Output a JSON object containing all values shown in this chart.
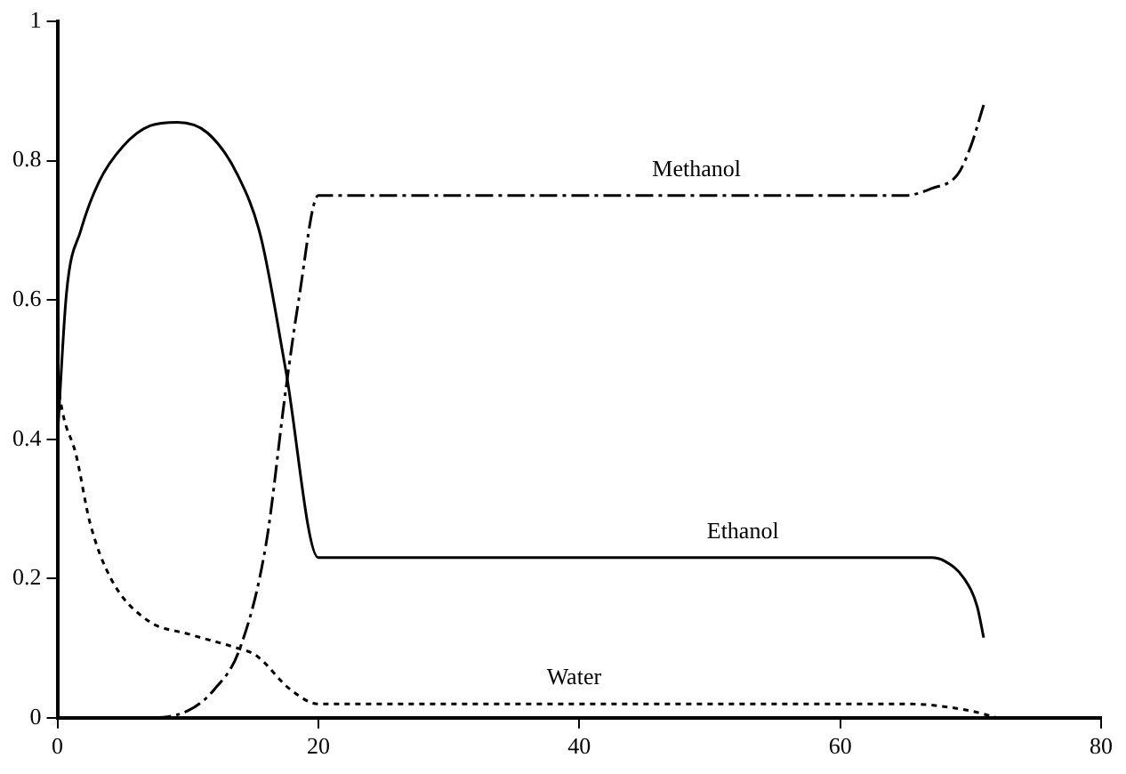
{
  "chart_data": {
    "type": "line",
    "xlim": [
      0,
      80
    ],
    "xticks": [
      0,
      20,
      40,
      60,
      80
    ],
    "ylim": [
      0,
      1
    ],
    "yticks": [
      0,
      0.2,
      0.4,
      0.6,
      0.8,
      1
    ],
    "grid": false,
    "legend": false,
    "marker": "none",
    "series": [
      {
        "name": "Ethanol",
        "color": "#000000",
        "line_style": "solid",
        "x": [
          0,
          0.7,
          1.8,
          3.2,
          5,
          7.1,
          9.2,
          11.5,
          13.8,
          15.6,
          17.5,
          20,
          30,
          40,
          50,
          60,
          67,
          68,
          69.5,
          70.5,
          71
        ],
        "values": [
          0.4,
          0.61,
          0.7,
          0.77,
          0.82,
          0.85,
          0.855,
          0.84,
          0.78,
          0.69,
          0.5,
          0.23,
          0.23,
          0.23,
          0.23,
          0.23,
          0.23,
          0.225,
          0.2,
          0.16,
          0.115
        ]
      },
      {
        "name": "Methanol",
        "color": "#000000",
        "line_style": "dashed",
        "x": [
          0,
          3,
          7,
          10,
          12,
          14,
          16,
          17.5,
          18.5,
          20,
          30,
          40,
          50,
          60,
          65,
          67,
          69,
          70,
          71
        ],
        "values": [
          0,
          0,
          0,
          0.01,
          0.04,
          0.1,
          0.25,
          0.47,
          0.6,
          0.75,
          0.75,
          0.75,
          0.75,
          0.75,
          0.75,
          0.76,
          0.78,
          0.82,
          0.88
        ]
      },
      {
        "name": "Water",
        "color": "#000000",
        "line_style": "dotted",
        "x": [
          0,
          0.5,
          1.4,
          2.5,
          4.1,
          6.9,
          10.1,
          13.8,
          15.2,
          17.9,
          20,
          30,
          40,
          50,
          60,
          65,
          70,
          72
        ],
        "values": [
          0.48,
          0.43,
          0.38,
          0.28,
          0.2,
          0.14,
          0.12,
          0.1,
          0.09,
          0.04,
          0.02,
          0.02,
          0.02,
          0.02,
          0.02,
          0.02,
          0.01,
          0
        ]
      }
    ]
  }
}
